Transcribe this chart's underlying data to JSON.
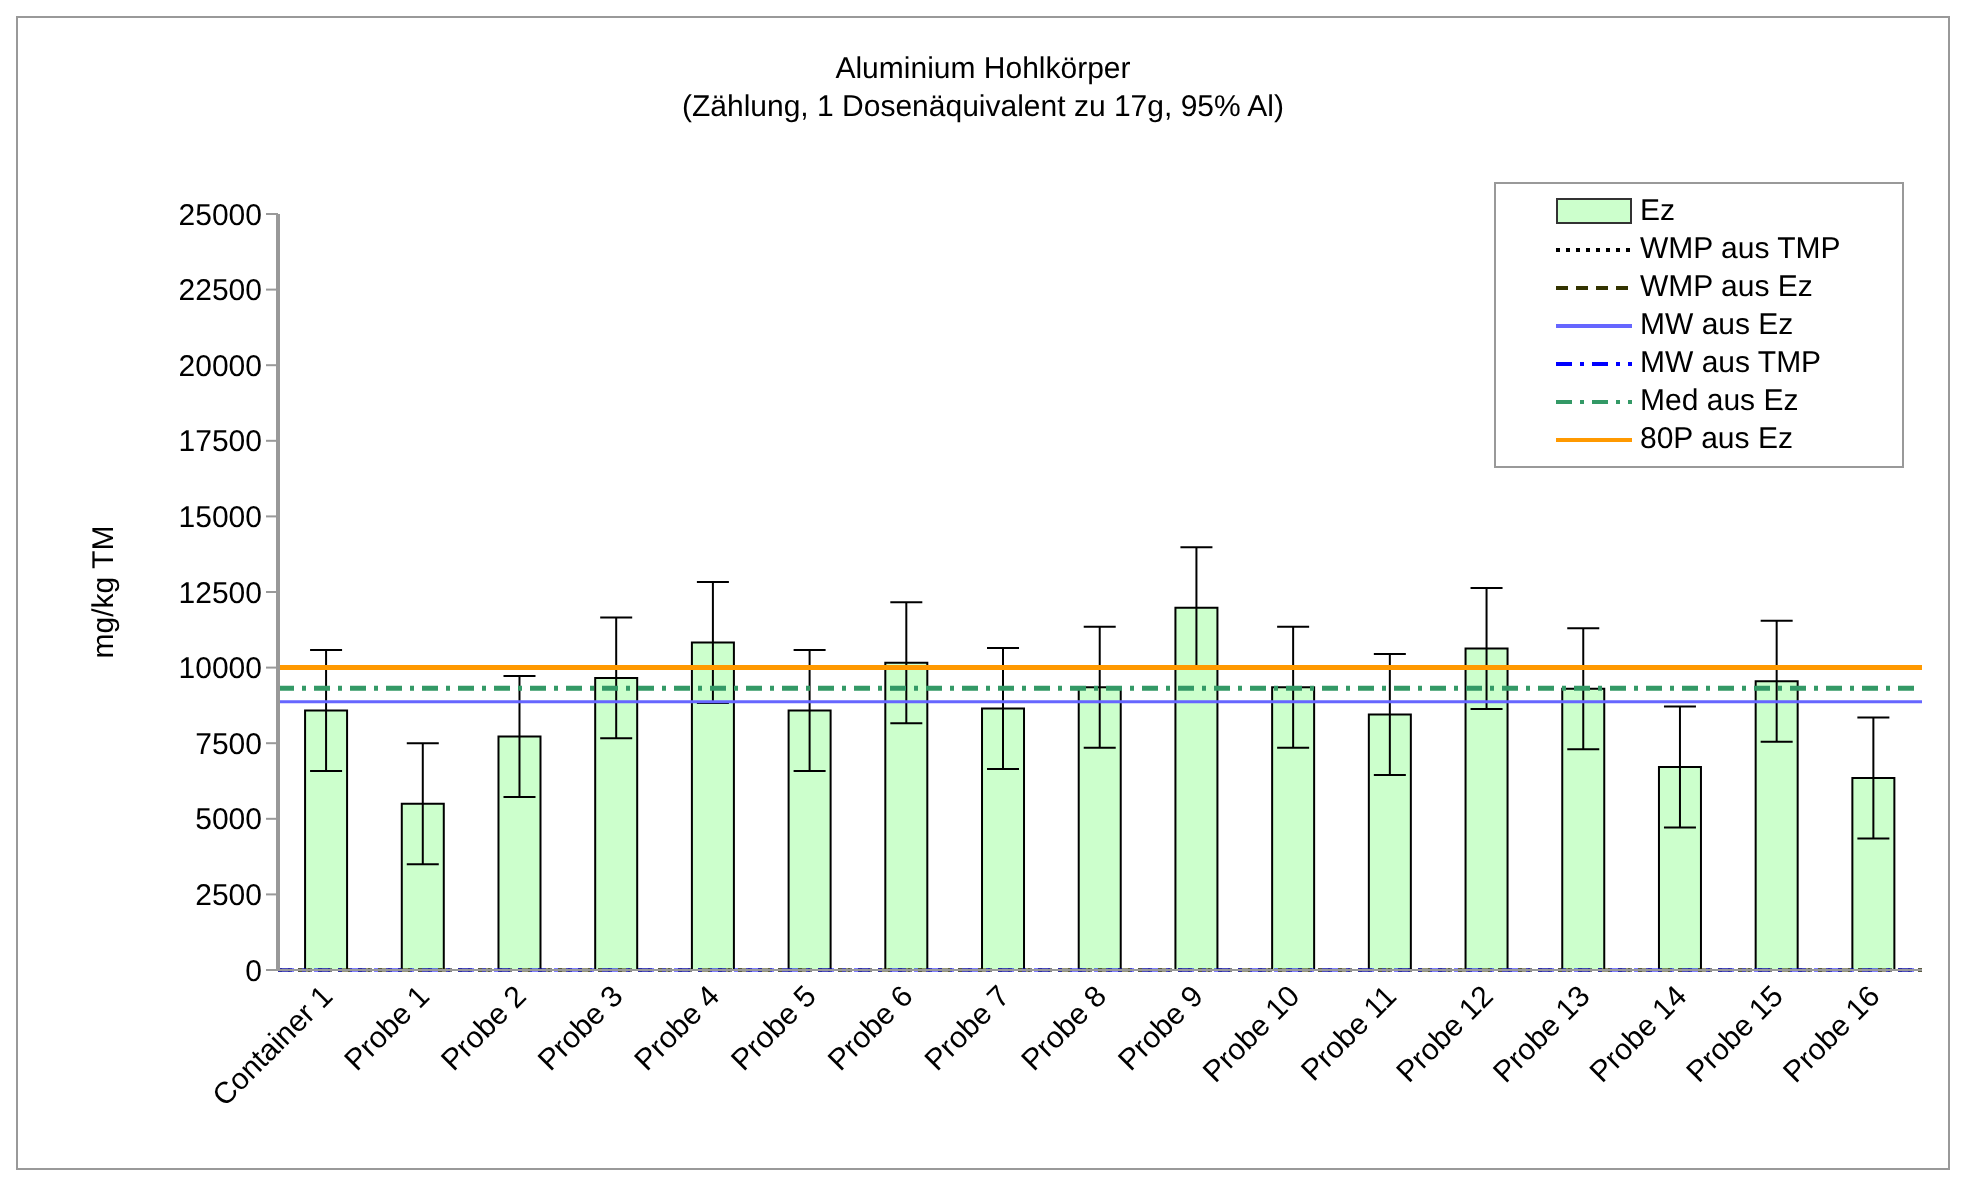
{
  "chart_data": {
    "type": "bar",
    "title": "Aluminium Hohlkörper",
    "subtitle": "(Zählung, 1 Dosenäquivalent zu 17g, 95% Al)",
    "ylabel": "mg/kg TM",
    "categories": [
      "Container 1",
      "Probe 1",
      "Probe 2",
      "Probe 3",
      "Probe 4",
      "Probe 5",
      "Probe 6",
      "Probe 7",
      "Probe 8",
      "Probe 9",
      "Probe 10",
      "Probe 11",
      "Probe 12",
      "Probe 13",
      "Probe 14",
      "Probe 15",
      "Probe 16"
    ],
    "series": [
      {
        "name": "Ez",
        "color": "#ccffcc",
        "values": [
          8580,
          5500,
          7720,
          9660,
          10830,
          8580,
          10160,
          8650,
          9350,
          11980,
          9350,
          8450,
          10630,
          9300,
          6710,
          9550,
          6350
        ],
        "errors": [
          2000,
          2000,
          2000,
          2000,
          2000,
          2000,
          2000,
          2000,
          2000,
          2000,
          2000,
          2000,
          2000,
          2000,
          2000,
          2000,
          2000
        ]
      }
    ],
    "ylim": [
      0,
      25000
    ],
    "yticks": [
      0,
      2500,
      5000,
      7500,
      10000,
      12500,
      15000,
      17500,
      20000,
      22500,
      25000
    ],
    "legend": "top right",
    "ref_lines": [
      {
        "axis": "y",
        "value": 0,
        "label": "WMP aus TMP",
        "color": "#000000",
        "line_style": "dotted"
      },
      {
        "axis": "y",
        "value": 0,
        "label": "WMP aus Ez",
        "color": "#333300",
        "line_style": "dashed"
      },
      {
        "axis": "y",
        "value": 8870,
        "label": "MW aus Ez",
        "color": "#6666ff",
        "line_style": "solid"
      },
      {
        "axis": "y",
        "value": 0,
        "label": "MW aus TMP",
        "color": "#0000ff",
        "line_style": "dashdot"
      },
      {
        "axis": "y",
        "value": 9320,
        "label": "Med aus Ez",
        "color": "#339966",
        "line_style": "dashdot"
      },
      {
        "axis": "y",
        "value": 10000,
        "label": "80P aus Ez",
        "color": "#ff9900",
        "line_style": "solid"
      }
    ]
  }
}
